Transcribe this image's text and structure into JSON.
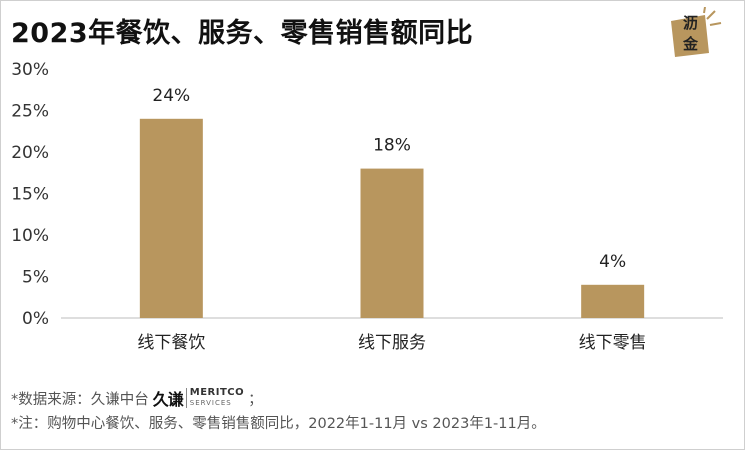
{
  "title": "2023年餐饮、服务、零售销售额同比",
  "logo": {
    "line1": "沥",
    "line2": "金",
    "accent": "#b8965e"
  },
  "notes": {
    "source_prefix": "*数据来源：久谦中台",
    "brand_cn": "久谦",
    "brand_en_top": "MERITCO",
    "brand_en_bottom": "SERVICES",
    "source_suffix": "；",
    "note": "*注：购物中心餐饮、服务、零售销售额同比，2022年1-11月 vs 2023年1-11月。"
  },
  "chart_data": {
    "type": "bar",
    "categories": [
      "线下餐饮",
      "线下服务",
      "线下零售"
    ],
    "values": [
      24,
      18,
      4
    ],
    "value_labels": [
      "24%",
      "18%",
      "4%"
    ],
    "ylim": [
      0,
      30
    ],
    "yticks": [
      0,
      5,
      10,
      15,
      20,
      25,
      30
    ],
    "ytick_labels": [
      "0%",
      "5%",
      "10%",
      "15%",
      "20%",
      "25%",
      "30%"
    ],
    "bar_color": "#b8965e",
    "grid": false,
    "xlabel": "",
    "ylabel": ""
  }
}
